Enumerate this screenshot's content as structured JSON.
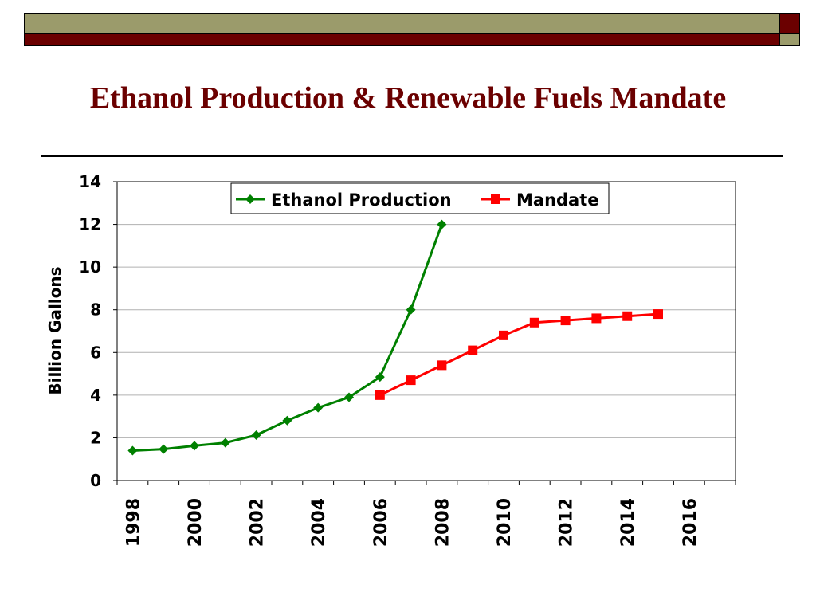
{
  "slide": {
    "title": "Ethanol Production & Renewable Fuels Mandate",
    "colors": {
      "band": "#9b9b6b",
      "maroon": "#6b0000",
      "title": "#6b0000"
    }
  },
  "chart_data": {
    "type": "line",
    "title": "",
    "xlabel": "",
    "ylabel": "Billion Gallons",
    "xlim": [
      1997.5,
      2017.5
    ],
    "ylim": [
      0,
      14
    ],
    "y_ticks": [
      0,
      2,
      4,
      6,
      8,
      10,
      12,
      14
    ],
    "x_tick_labels": [
      "1998",
      "2000",
      "2002",
      "2004",
      "2006",
      "2008",
      "2010",
      "2012",
      "2014",
      "2016"
    ],
    "grid": true,
    "legend_position": "top-center",
    "series": [
      {
        "name": "Ethanol Production",
        "color": "#008000",
        "marker": "diamond",
        "x": [
          1998,
          1999,
          2000,
          2001,
          2002,
          2003,
          2004,
          2005,
          2006,
          2007,
          2008
        ],
        "y": [
          1.4,
          1.47,
          1.63,
          1.77,
          2.13,
          2.81,
          3.41,
          3.9,
          4.85,
          8.0,
          12.0
        ]
      },
      {
        "name": "Mandate",
        "color": "#ff0000",
        "marker": "square",
        "x": [
          2006,
          2007,
          2008,
          2009,
          2010,
          2011,
          2012,
          2013,
          2014,
          2015
        ],
        "y": [
          4.0,
          4.7,
          5.4,
          6.1,
          6.8,
          7.4,
          7.5,
          7.6,
          7.7,
          7.8
        ]
      }
    ]
  }
}
